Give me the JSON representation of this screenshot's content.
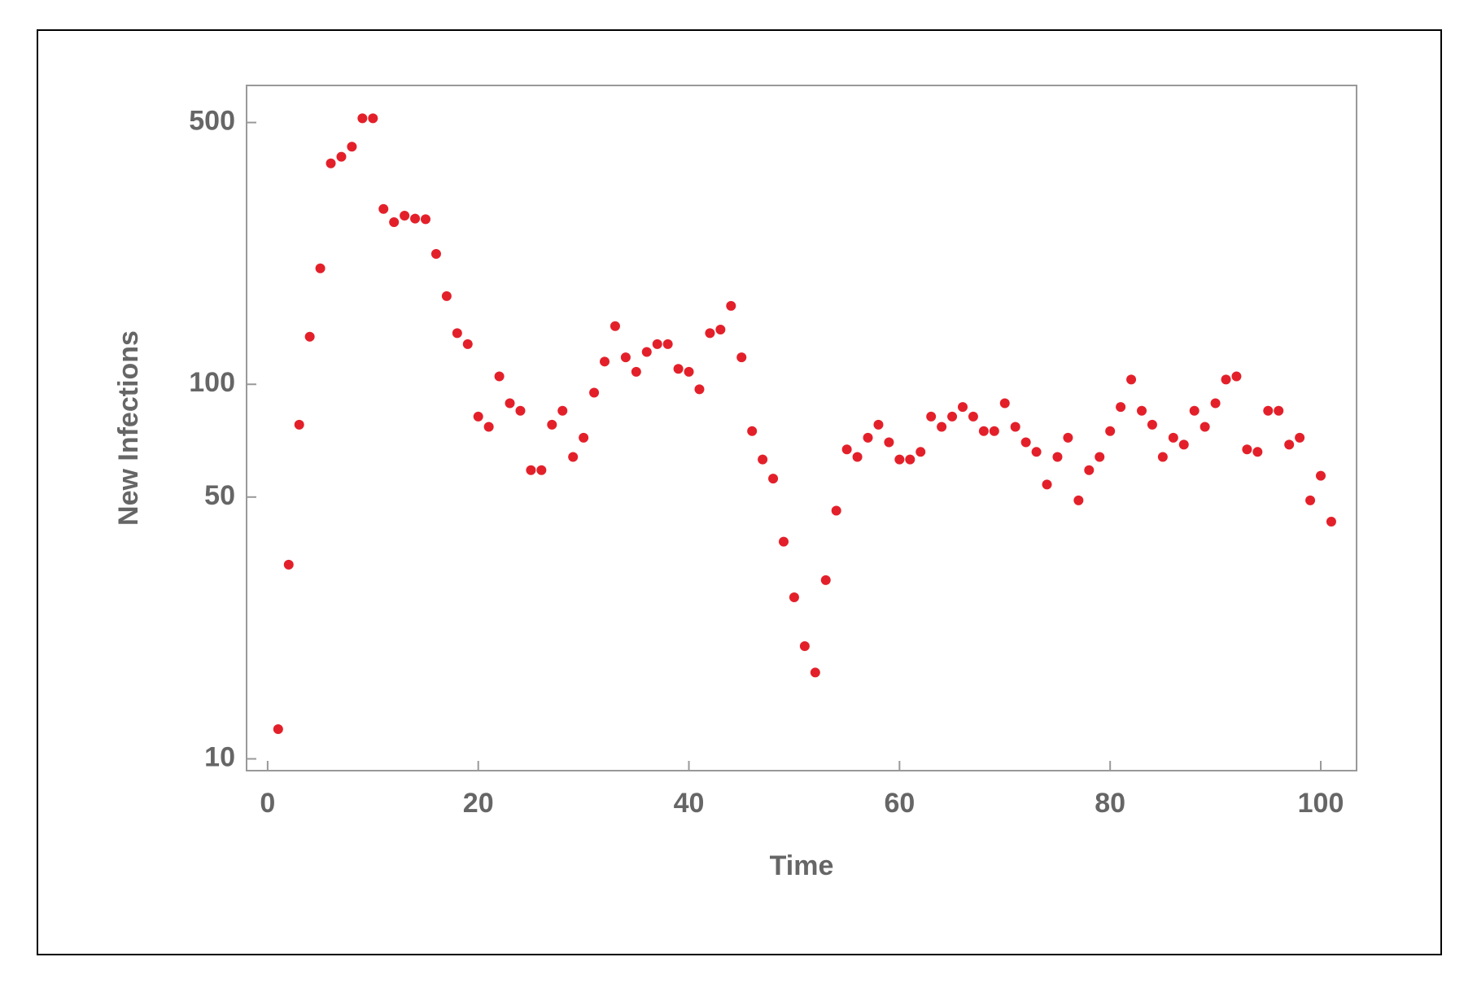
{
  "chart_data": {
    "type": "scatter",
    "x_label": "Time",
    "y_label": "New Infections",
    "x": [
      1,
      2,
      3,
      4,
      5,
      6,
      7,
      8,
      9,
      10,
      11,
      12,
      13,
      14,
      15,
      16,
      17,
      18,
      19,
      20,
      21,
      22,
      23,
      24,
      25,
      26,
      27,
      28,
      29,
      30,
      31,
      32,
      33,
      34,
      35,
      36,
      37,
      38,
      39,
      40,
      41,
      42,
      43,
      44,
      45,
      46,
      47,
      48,
      49,
      50,
      51,
      52,
      53,
      54,
      55,
      56,
      57,
      58,
      59,
      60,
      61,
      62,
      63,
      64,
      65,
      66,
      67,
      68,
      69,
      70,
      71,
      72,
      73,
      74,
      75,
      76,
      77,
      78,
      79,
      80,
      81,
      82,
      83,
      84,
      85,
      86,
      87,
      88,
      89,
      90,
      91,
      92,
      93,
      94,
      95,
      96,
      97,
      98,
      99,
      100,
      101
    ],
    "values": [
      12,
      33,
      78,
      134,
      204,
      389,
      405,
      431,
      513,
      513,
      294,
      271,
      282,
      277,
      276,
      223,
      172,
      137,
      128,
      82,
      77,
      105,
      89,
      85,
      59,
      59,
      78,
      85,
      64,
      72,
      95,
      115,
      143,
      118,
      108,
      122,
      128,
      128,
      110,
      108,
      97,
      137,
      140,
      162,
      118,
      75,
      63,
      56,
      38,
      27,
      20,
      17,
      30,
      46,
      67,
      64,
      72,
      78,
      70,
      63,
      63,
      66,
      82,
      77,
      82,
      87,
      82,
      75,
      75,
      89,
      77,
      70,
      66,
      54,
      64,
      72,
      49,
      59,
      64,
      75,
      87,
      103,
      85,
      78,
      64,
      72,
      69,
      85,
      77,
      89,
      103,
      105,
      67,
      66,
      85,
      85,
      69,
      72,
      49,
      57,
      43
    ],
    "color": "#e3202a",
    "xlim": [
      -2,
      103.4
    ],
    "xticks": [
      0,
      20,
      40,
      60,
      80,
      100
    ],
    "ylim": [
      9.3,
      628
    ],
    "yticks": [
      10,
      50,
      100,
      500
    ],
    "ylog": true
  }
}
